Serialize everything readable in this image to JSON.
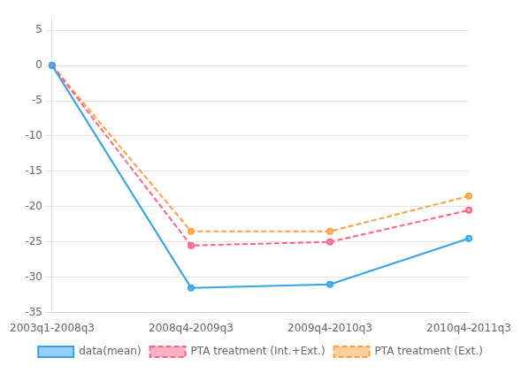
{
  "chart_data": {
    "type": "line",
    "categories": [
      "2003q1-2008q3",
      "2008q4-2009q3",
      "2009q4-2010q3",
      "2010q4-2011q3"
    ],
    "series": [
      {
        "name": "data(mean)",
        "values": [
          0,
          -31.5,
          -31.0,
          -24.5
        ],
        "line_style": "solid"
      },
      {
        "name": "PTA treatment (Int.+Ext.)",
        "values": [
          0,
          -25.5,
          -25.0,
          -20.5
        ],
        "line_style": "dashed"
      },
      {
        "name": "PTA treatment (Ext.)",
        "values": [
          0,
          -23.5,
          -23.5,
          -18.5
        ],
        "line_style": "dashed"
      }
    ],
    "ylim": [
      -35,
      7
    ],
    "yticks": [
      5,
      0,
      -5,
      -10,
      -15,
      -20,
      -25,
      -30,
      -35
    ],
    "grid": true,
    "legend": "bottom"
  }
}
